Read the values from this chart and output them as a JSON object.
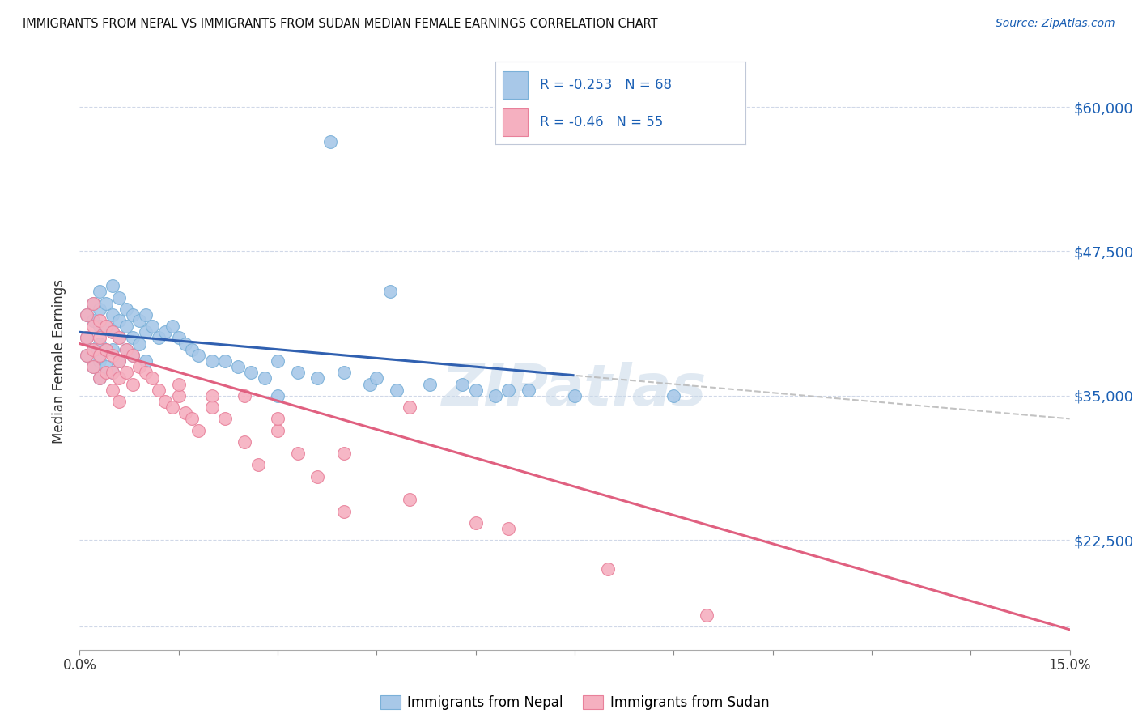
{
  "title": "IMMIGRANTS FROM NEPAL VS IMMIGRANTS FROM SUDAN MEDIAN FEMALE EARNINGS CORRELATION CHART",
  "source": "Source: ZipAtlas.com",
  "ylabel": "Median Female Earnings",
  "yticks": [
    15000,
    22500,
    35000,
    47500,
    60000
  ],
  "ytick_labels": [
    "",
    "$22,500",
    "$35,000",
    "$47,500",
    "$60,000"
  ],
  "xmin": 0.0,
  "xmax": 0.15,
  "ymin": 13000,
  "ymax": 63000,
  "nepal_color": "#a8c8e8",
  "nepal_color_edge": "#7ab0d8",
  "sudan_color": "#f5b0c0",
  "sudan_color_edge": "#e8809a",
  "nepal_R": -0.253,
  "nepal_N": 68,
  "sudan_R": -0.46,
  "sudan_N": 55,
  "trend_blue": "#3060b0",
  "trend_pink": "#e06080",
  "trend_gray": "#b8b8b8",
  "label_color": "#1a5fb4",
  "nepal_x": [
    0.001,
    0.001,
    0.001,
    0.002,
    0.002,
    0.002,
    0.002,
    0.003,
    0.003,
    0.003,
    0.003,
    0.003,
    0.003,
    0.004,
    0.004,
    0.004,
    0.004,
    0.005,
    0.005,
    0.005,
    0.005,
    0.005,
    0.006,
    0.006,
    0.006,
    0.006,
    0.007,
    0.007,
    0.007,
    0.008,
    0.008,
    0.008,
    0.009,
    0.009,
    0.01,
    0.01,
    0.01,
    0.011,
    0.012,
    0.013,
    0.014,
    0.015,
    0.016,
    0.017,
    0.018,
    0.02,
    0.022,
    0.024,
    0.026,
    0.028,
    0.03,
    0.033,
    0.036,
    0.04,
    0.044,
    0.048,
    0.053,
    0.058,
    0.063,
    0.068,
    0.03,
    0.045,
    0.06,
    0.075,
    0.09,
    0.047,
    0.065,
    0.038
  ],
  "nepal_y": [
    40000,
    42000,
    38500,
    43000,
    41500,
    39000,
    37500,
    44000,
    42500,
    41000,
    39500,
    38000,
    36500,
    43000,
    41000,
    39000,
    37500,
    44500,
    42000,
    40500,
    39000,
    37000,
    43500,
    41500,
    40000,
    38000,
    42500,
    41000,
    39000,
    42000,
    40000,
    38500,
    41500,
    39500,
    42000,
    40500,
    38000,
    41000,
    40000,
    40500,
    41000,
    40000,
    39500,
    39000,
    38500,
    38000,
    38000,
    37500,
    37000,
    36500,
    38000,
    37000,
    36500,
    37000,
    36000,
    35500,
    36000,
    36000,
    35000,
    35500,
    35000,
    36500,
    35500,
    35000,
    35000,
    44000,
    35500,
    57000
  ],
  "sudan_x": [
    0.001,
    0.001,
    0.001,
    0.002,
    0.002,
    0.002,
    0.002,
    0.003,
    0.003,
    0.003,
    0.003,
    0.004,
    0.004,
    0.004,
    0.005,
    0.005,
    0.005,
    0.005,
    0.006,
    0.006,
    0.006,
    0.006,
    0.007,
    0.007,
    0.008,
    0.008,
    0.009,
    0.01,
    0.011,
    0.012,
    0.013,
    0.014,
    0.015,
    0.016,
    0.017,
    0.018,
    0.02,
    0.022,
    0.025,
    0.027,
    0.03,
    0.033,
    0.036,
    0.04,
    0.05,
    0.06,
    0.065,
    0.08,
    0.095,
    0.05,
    0.03,
    0.04,
    0.025,
    0.015,
    0.02
  ],
  "sudan_y": [
    42000,
    40000,
    38500,
    43000,
    41000,
    39000,
    37500,
    41500,
    40000,
    38500,
    36500,
    41000,
    39000,
    37000,
    40500,
    38500,
    37000,
    35500,
    40000,
    38000,
    36500,
    34500,
    39000,
    37000,
    38500,
    36000,
    37500,
    37000,
    36500,
    35500,
    34500,
    34000,
    35000,
    33500,
    33000,
    32000,
    35000,
    33000,
    31000,
    29000,
    32000,
    30000,
    28000,
    30000,
    26000,
    24000,
    23500,
    20000,
    16000,
    34000,
    33000,
    25000,
    35000,
    36000,
    34000
  ]
}
